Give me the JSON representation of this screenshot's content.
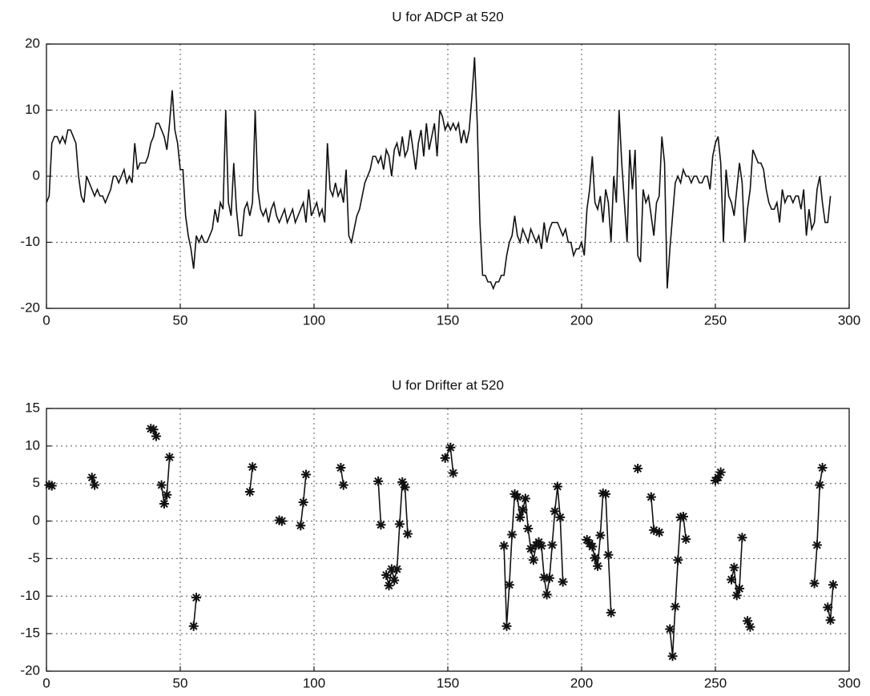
{
  "chart_data": [
    {
      "type": "line",
      "title": "U for ADCP at 520",
      "color": "#111111",
      "grid": true,
      "xlim": [
        0,
        300
      ],
      "xticks": [
        0,
        50,
        100,
        150,
        200,
        250,
        300
      ],
      "ylim": [
        -20,
        20
      ],
      "yticks": [
        -20,
        -10,
        0,
        10,
        20
      ],
      "x": [
        0,
        1,
        2,
        3,
        4,
        5,
        6,
        7,
        8,
        9,
        10,
        11,
        12,
        13,
        14,
        15,
        16,
        17,
        18,
        19,
        20,
        21,
        22,
        23,
        24,
        25,
        26,
        27,
        28,
        29,
        30,
        31,
        32,
        33,
        34,
        35,
        36,
        37,
        38,
        39,
        40,
        41,
        42,
        43,
        44,
        45,
        46,
        47,
        48,
        49,
        50,
        51,
        52,
        53,
        54,
        55,
        56,
        57,
        58,
        59,
        60,
        61,
        62,
        63,
        64,
        65,
        66,
        67,
        68,
        69,
        70,
        71,
        72,
        73,
        74,
        75,
        76,
        77,
        78,
        79,
        80,
        81,
        82,
        83,
        84,
        85,
        86,
        87,
        88,
        89,
        90,
        91,
        92,
        93,
        94,
        95,
        96,
        97,
        98,
        99,
        100,
        101,
        102,
        103,
        104,
        105,
        106,
        107,
        108,
        109,
        110,
        111,
        112,
        113,
        114,
        115,
        116,
        117,
        118,
        119,
        120,
        121,
        122,
        123,
        124,
        125,
        126,
        127,
        128,
        129,
        130,
        131,
        132,
        133,
        134,
        135,
        136,
        137,
        138,
        139,
        140,
        141,
        142,
        143,
        144,
        145,
        146,
        147,
        148,
        149,
        150,
        151,
        152,
        153,
        154,
        155,
        156,
        157,
        158,
        159,
        160,
        161,
        162,
        163,
        164,
        165,
        166,
        167,
        168,
        169,
        170,
        171,
        172,
        173,
        174,
        175,
        176,
        177,
        178,
        179,
        180,
        181,
        182,
        183,
        184,
        185,
        186,
        187,
        188,
        189,
        190,
        191,
        192,
        193,
        194,
        195,
        196,
        197,
        198,
        199,
        200,
        201,
        202,
        203,
        204,
        205,
        206,
        207,
        208,
        209,
        210,
        211,
        212,
        213,
        214,
        215,
        216,
        217,
        218,
        219,
        220,
        221,
        222,
        223,
        224,
        225,
        226,
        227,
        228,
        229,
        230,
        231,
        232,
        233,
        234,
        235,
        236,
        237,
        238,
        239,
        240,
        241,
        242,
        243,
        244,
        245,
        246,
        247,
        248,
        249,
        250,
        251,
        252,
        253,
        254,
        255,
        256,
        257,
        258,
        259,
        260,
        261,
        262,
        263,
        264,
        265,
        266,
        267,
        268,
        269,
        270,
        271,
        272,
        273,
        274,
        275,
        276,
        277,
        278,
        279,
        280,
        281,
        282,
        283,
        284,
        285,
        286,
        287,
        288,
        289,
        290,
        291,
        292,
        293
      ],
      "values": [
        -4,
        -3,
        5,
        6,
        6,
        5,
        6,
        5,
        7,
        7,
        6,
        5,
        0,
        -3,
        -4,
        0,
        -1,
        -2,
        -3,
        -2,
        -3,
        -3,
        -4,
        -3,
        -2,
        0,
        0,
        -1,
        0,
        1,
        -1,
        0,
        -1,
        5,
        1,
        2,
        2,
        2,
        3,
        5,
        6,
        8,
        8,
        7,
        6,
        4,
        8,
        13,
        7,
        5,
        1,
        1,
        -6,
        -9,
        -11,
        -14,
        -9,
        -10,
        -9,
        -10,
        -10,
        -9,
        -8,
        -5,
        -7,
        -4,
        -5,
        10,
        -4,
        -6,
        2,
        -5,
        -9,
        -9,
        -5,
        -4,
        -6,
        -4,
        10,
        -2,
        -5,
        -6,
        -5,
        -7,
        -5,
        -4,
        -6,
        -7,
        -6,
        -5,
        -7,
        -6,
        -5,
        -7,
        -6,
        -5,
        -4,
        -7,
        -2,
        -6,
        -5,
        -4,
        -6,
        -5,
        -7,
        5,
        -2,
        -3,
        -1,
        -3,
        -2,
        -4,
        1,
        -9,
        -10,
        -8,
        -6,
        -5,
        -3,
        -1,
        0,
        1,
        3,
        3,
        2,
        3,
        1,
        4,
        3,
        0,
        4,
        5,
        3,
        6,
        3,
        4,
        7,
        4,
        1,
        5,
        7,
        3,
        8,
        4,
        6,
        8,
        3,
        10,
        9,
        7,
        8,
        7,
        8,
        7,
        8,
        5,
        7,
        5,
        7,
        12,
        18,
        8,
        -7,
        -15,
        -15,
        -16,
        -16,
        -17,
        -16,
        -16,
        -15,
        -15,
        -12,
        -10,
        -9,
        -6,
        -9,
        -10,
        -8,
        -9,
        -10,
        -8,
        -9,
        -10,
        -9,
        -11,
        -7,
        -10,
        -8,
        -7,
        -7,
        -7,
        -8,
        -9,
        -8,
        -10,
        -10,
        -12,
        -11,
        -11,
        -10,
        -12,
        -5,
        -2,
        3,
        -4,
        -5,
        -3,
        -7,
        -2,
        -4,
        -10,
        0,
        -4,
        10,
        2,
        -4,
        -10,
        4,
        -2,
        4,
        -12,
        -13,
        -2,
        -4,
        -3,
        -6,
        -9,
        -4,
        -3,
        6,
        2,
        -17,
        -11,
        -6,
        -1,
        0,
        -1,
        1,
        0,
        0,
        -1,
        0,
        0,
        -1,
        -1,
        0,
        0,
        -2,
        3,
        5,
        6,
        2,
        -10,
        1,
        -3,
        -4,
        -6,
        -2,
        2,
        -1,
        -10,
        -5,
        -2,
        4,
        3,
        2,
        2,
        1,
        -2,
        -4,
        -5,
        -5,
        -4,
        -7,
        -2,
        -4,
        -3,
        -3,
        -4,
        -3,
        -3,
        -5,
        -2,
        -9,
        -5,
        -8,
        -7,
        -2,
        0,
        -4,
        -7,
        -7,
        -3
      ]
    },
    {
      "type": "line",
      "title": "U for Drifter at 520",
      "color": "#111111",
      "grid": true,
      "marker": "*",
      "xlim": [
        0,
        300
      ],
      "xticks": [
        0,
        50,
        100,
        150,
        200,
        250,
        300
      ],
      "ylim": [
        -20,
        15
      ],
      "yticks": [
        -20,
        -15,
        -10,
        -5,
        0,
        5,
        10,
        15
      ],
      "x": [
        1,
        2,
        null,
        17,
        18,
        null,
        39,
        40,
        41,
        null,
        43,
        44,
        45,
        46,
        null,
        55,
        56,
        null,
        76,
        77,
        null,
        87,
        88,
        null,
        95,
        96,
        97,
        null,
        110,
        111,
        null,
        124,
        125,
        null,
        127,
        128,
        129,
        130,
        131,
        132,
        133,
        134,
        135,
        null,
        149,
        151,
        152,
        null,
        171,
        172,
        173,
        174,
        175,
        176,
        177,
        178,
        179,
        180,
        181,
        182,
        183,
        184,
        185,
        186,
        187,
        188,
        189,
        190,
        191,
        192,
        193,
        null,
        202,
        203,
        204,
        205,
        206,
        207,
        208,
        209,
        210,
        211,
        null,
        221,
        null,
        226,
        227,
        229,
        null,
        233,
        234,
        235,
        236,
        237,
        238,
        239,
        null,
        250,
        251,
        252,
        null,
        256,
        257,
        258,
        259,
        260,
        null,
        262,
        263,
        null,
        287,
        288,
        289,
        290,
        null,
        292,
        293,
        294
      ],
      "values": [
        4.8,
        4.7,
        null,
        5.8,
        4.8,
        null,
        12.3,
        12.2,
        11.3,
        null,
        4.8,
        2.3,
        3.5,
        8.5,
        null,
        -14,
        -10.2,
        null,
        3.9,
        7.2,
        null,
        0.1,
        0,
        null,
        -0.6,
        2.5,
        6.2,
        null,
        7.1,
        4.8,
        null,
        5.3,
        -0.5,
        null,
        -7.2,
        -8.6,
        -6.4,
        -7.9,
        -6.4,
        -0.4,
        5.2,
        4.5,
        -1.7,
        null,
        8.4,
        9.8,
        6.4,
        null,
        -3.3,
        -14,
        -8.5,
        -1.8,
        3.6,
        3.2,
        0.5,
        1.5,
        3,
        -1,
        -3.7,
        -5.2,
        -3.2,
        -2.8,
        -3.3,
        -7.5,
        -9.8,
        -7.6,
        -3.2,
        1.3,
        4.6,
        0.5,
        -8.1,
        null,
        -2.5,
        -3,
        -3.4,
        -4.9,
        -6,
        -1.9,
        3.7,
        3.6,
        -4.5,
        -12.2,
        null,
        7,
        null,
        3.2,
        -1.2,
        -1.5,
        null,
        -14.4,
        -18,
        -11.4,
        -5.2,
        0.5,
        0.6,
        -2.4,
        null,
        5.4,
        5.8,
        6.5,
        null,
        -7.8,
        -6.2,
        -9.9,
        -9,
        -2.2,
        null,
        -13.3,
        -14.1,
        null,
        -8.3,
        -3.2,
        4.8,
        7.1,
        null,
        -11.5,
        -13.2,
        -8.5
      ]
    }
  ]
}
